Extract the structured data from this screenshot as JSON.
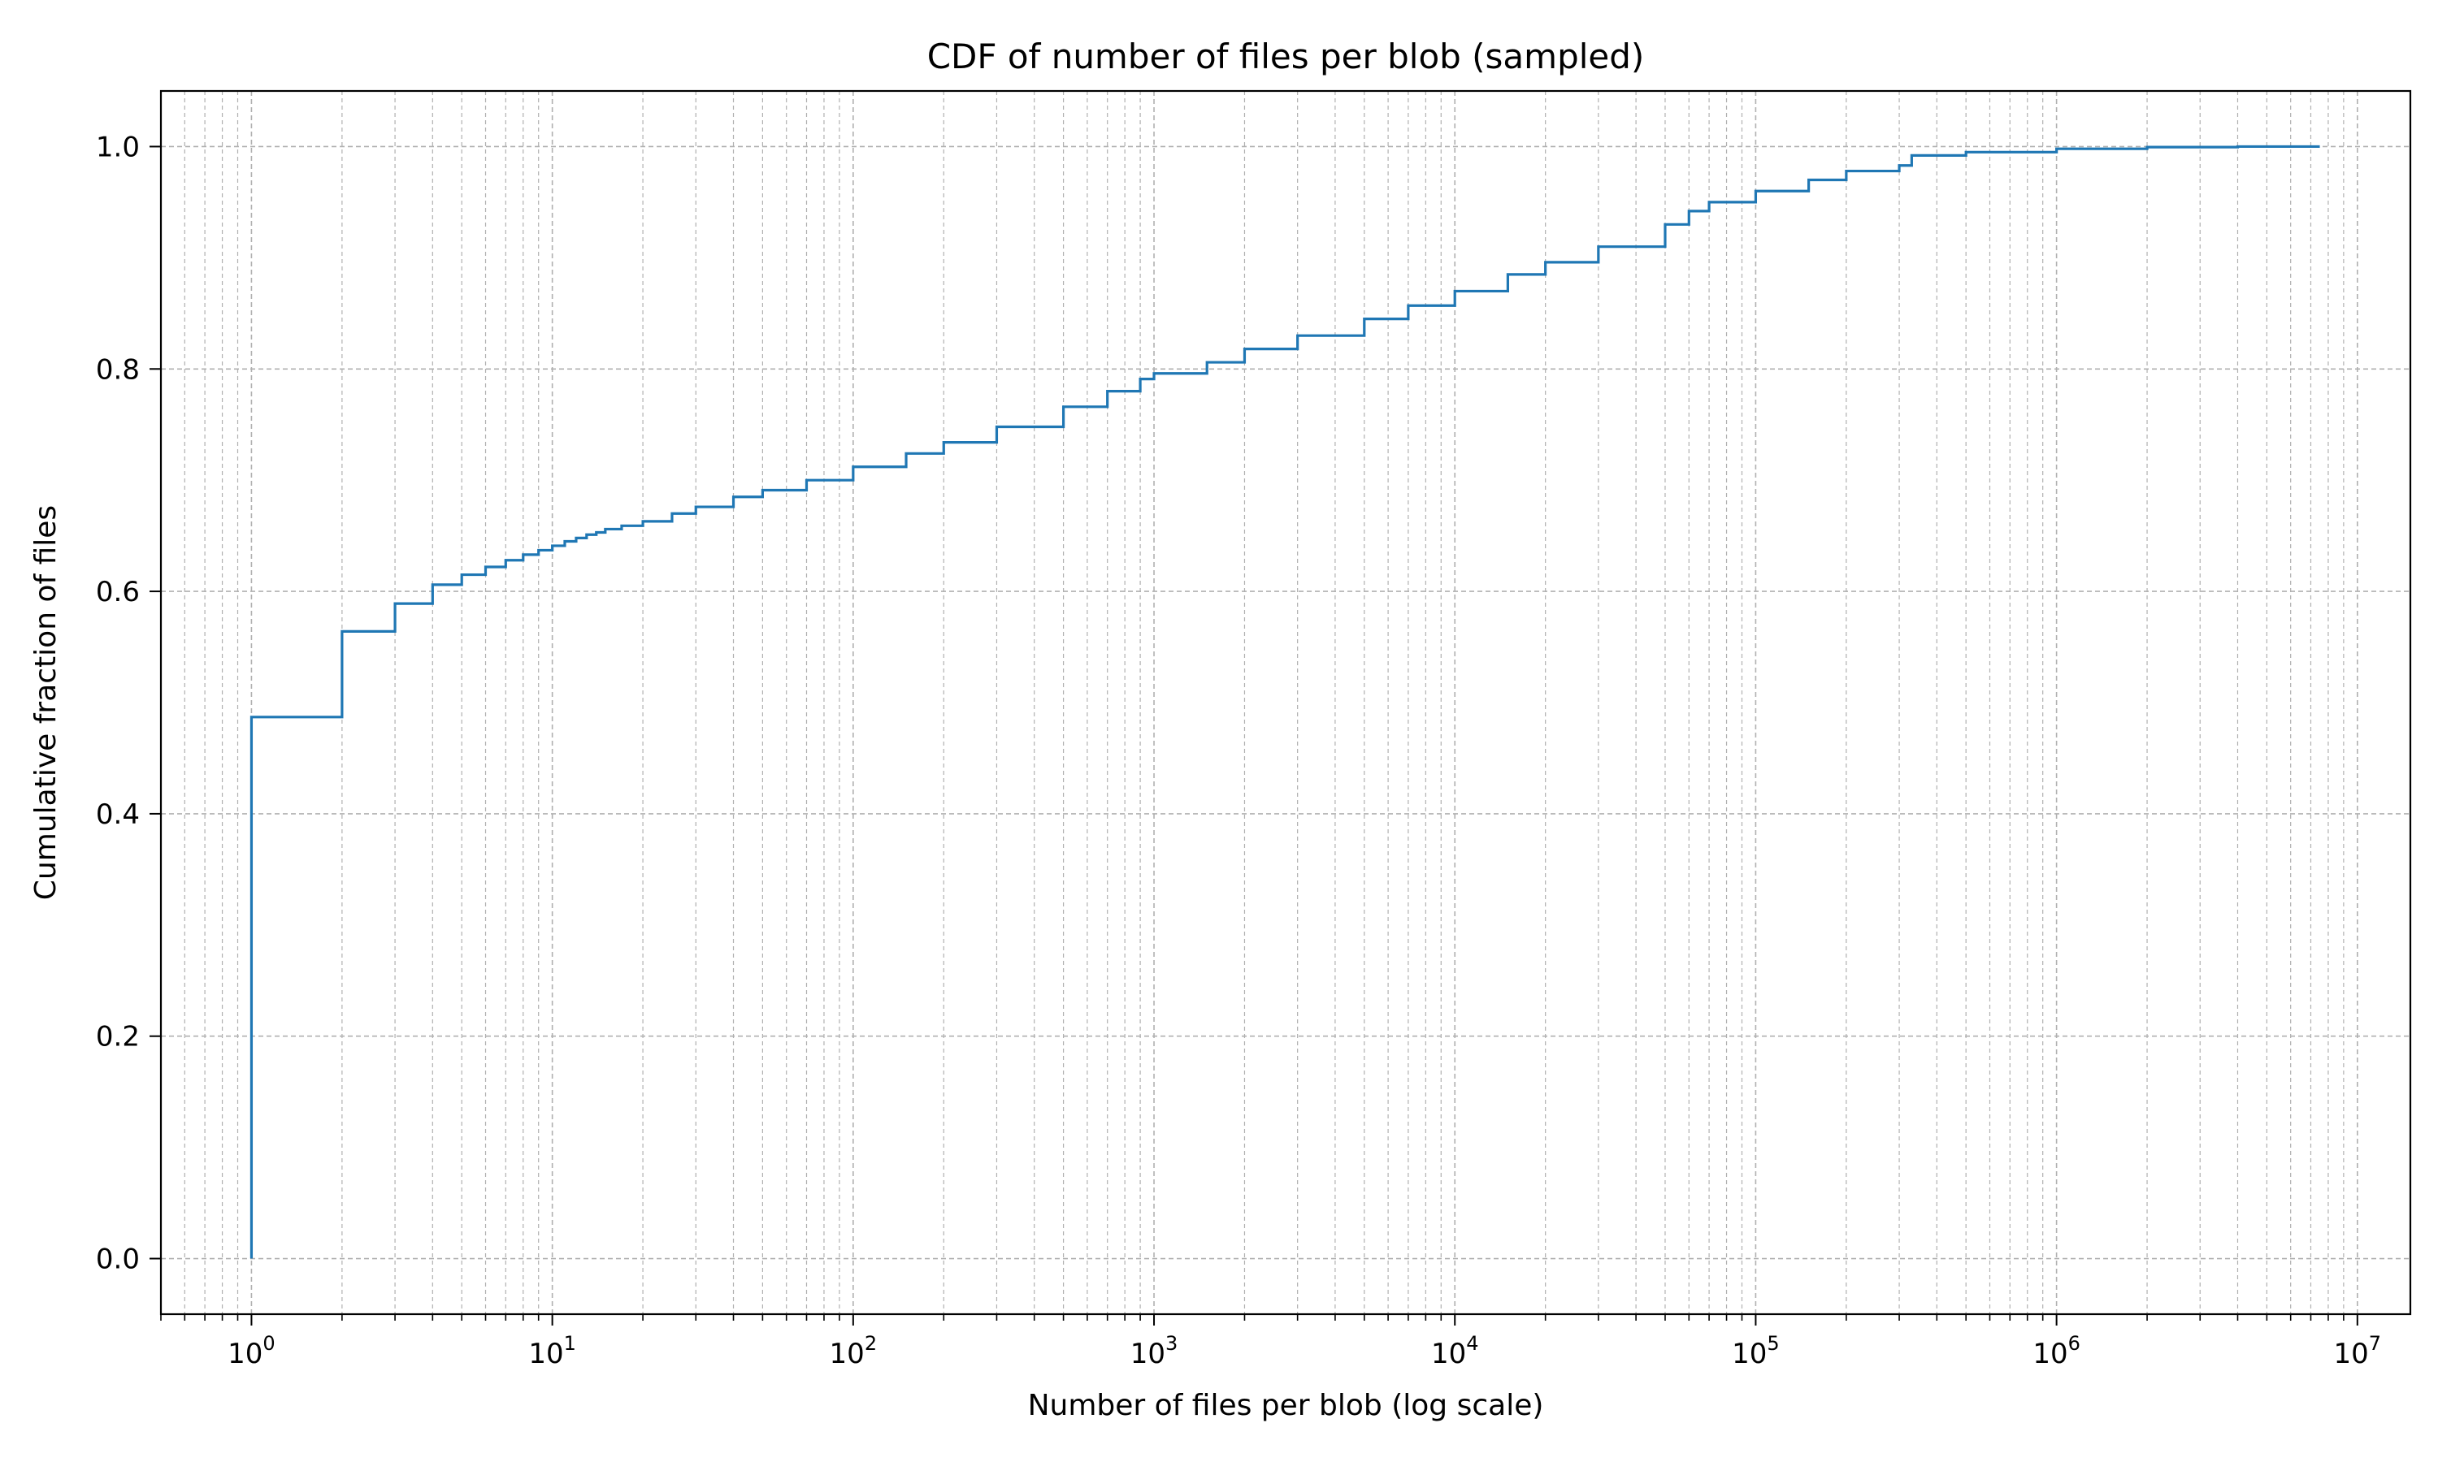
{
  "chart_data": {
    "type": "line",
    "title": "CDF of number of files per blob (sampled)",
    "xlabel": "Number of files per blob (log scale)",
    "ylabel": "Cumulative fraction of files",
    "x_scale": "log",
    "xlim": [
      0.5,
      15000000
    ],
    "ylim": [
      -0.05,
      1.05
    ],
    "x_ticks": [
      {
        "base": "10",
        "exp": "0",
        "value": 1
      },
      {
        "base": "10",
        "exp": "1",
        "value": 10
      },
      {
        "base": "10",
        "exp": "2",
        "value": 100
      },
      {
        "base": "10",
        "exp": "3",
        "value": 1000
      },
      {
        "base": "10",
        "exp": "4",
        "value": 10000
      },
      {
        "base": "10",
        "exp": "5",
        "value": 100000
      },
      {
        "base": "10",
        "exp": "6",
        "value": 1000000
      },
      {
        "base": "10",
        "exp": "7",
        "value": 10000000
      }
    ],
    "y_ticks": [
      {
        "label": "0.0",
        "value": 0.0
      },
      {
        "label": "0.2",
        "value": 0.2
      },
      {
        "label": "0.4",
        "value": 0.4
      },
      {
        "label": "0.6",
        "value": 0.6
      },
      {
        "label": "0.8",
        "value": 0.8
      },
      {
        "label": "1.0",
        "value": 1.0
      }
    ],
    "grid": true,
    "line_color": "#1f77b4",
    "series": [
      {
        "drawstyle": "steps-post",
        "points": [
          [
            1,
            0.0
          ],
          [
            1,
            0.487
          ],
          [
            2,
            0.564
          ],
          [
            3,
            0.589
          ],
          [
            4,
            0.606
          ],
          [
            5,
            0.615
          ],
          [
            6,
            0.622
          ],
          [
            7,
            0.628
          ],
          [
            8,
            0.633
          ],
          [
            9,
            0.637
          ],
          [
            10,
            0.641
          ],
          [
            11,
            0.645
          ],
          [
            12,
            0.648
          ],
          [
            13,
            0.651
          ],
          [
            14,
            0.653
          ],
          [
            15,
            0.656
          ],
          [
            17,
            0.659
          ],
          [
            20,
            0.663
          ],
          [
            25,
            0.67
          ],
          [
            30,
            0.676
          ],
          [
            40,
            0.685
          ],
          [
            50,
            0.691
          ],
          [
            70,
            0.7
          ],
          [
            100,
            0.712
          ],
          [
            150,
            0.724
          ],
          [
            200,
            0.734
          ],
          [
            300,
            0.748
          ],
          [
            500,
            0.766
          ],
          [
            700,
            0.78
          ],
          [
            900,
            0.791
          ],
          [
            1000,
            0.796
          ],
          [
            1500,
            0.806
          ],
          [
            2000,
            0.818
          ],
          [
            3000,
            0.83
          ],
          [
            5000,
            0.845
          ],
          [
            7000,
            0.857
          ],
          [
            10000,
            0.87
          ],
          [
            15000,
            0.885
          ],
          [
            20000,
            0.896
          ],
          [
            30000,
            0.91
          ],
          [
            50000,
            0.93
          ],
          [
            60000,
            0.942
          ],
          [
            70000,
            0.95
          ],
          [
            100000,
            0.96
          ],
          [
            150000,
            0.97
          ],
          [
            200000,
            0.978
          ],
          [
            300000,
            0.983
          ],
          [
            330000,
            0.992
          ],
          [
            500000,
            0.995
          ],
          [
            1000000,
            0.998
          ],
          [
            2000000,
            0.9995
          ],
          [
            4000000,
            1.0
          ],
          [
            7500000,
            1.0
          ]
        ]
      }
    ]
  }
}
